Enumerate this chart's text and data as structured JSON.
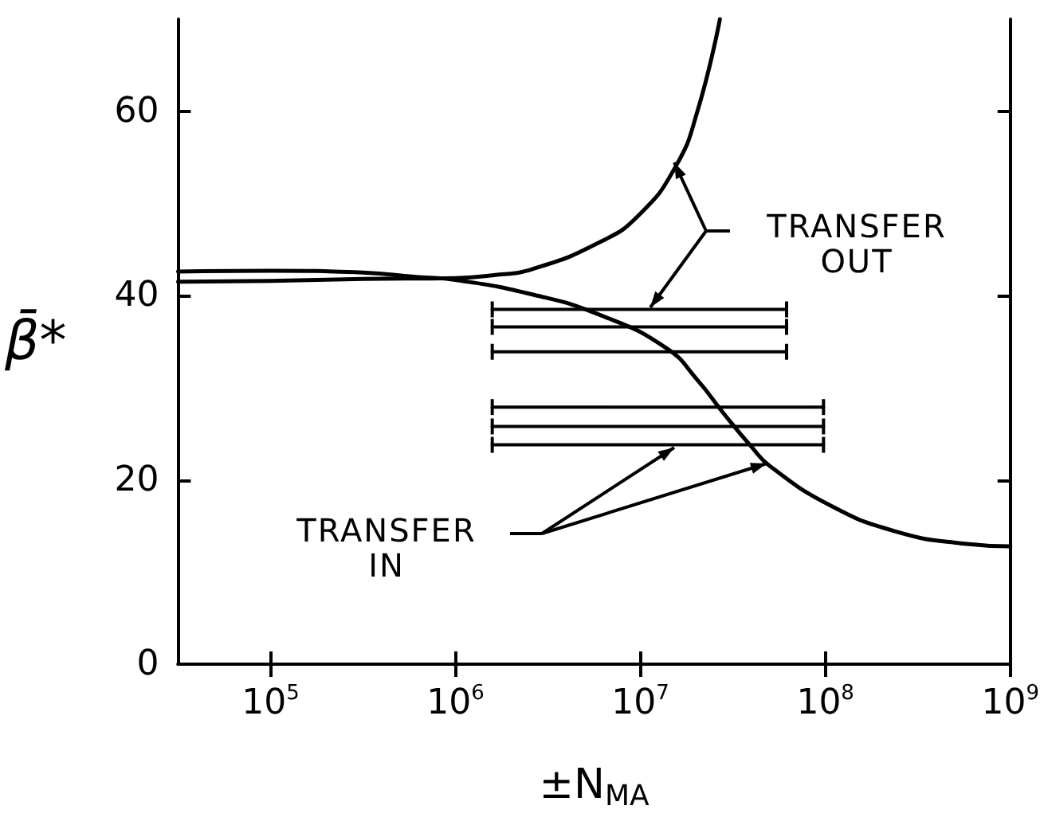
{
  "chart_data": {
    "type": "line",
    "xlabel": "±N$_{MA}$",
    "ylabel": "β̄*",
    "log": "x",
    "xlim": [
      31600,
      1000000000
    ],
    "xticks": [
      {
        "value": 100000,
        "label": "10$^{5}$"
      },
      {
        "value": 1000000,
        "label": "10$^{6}$"
      },
      {
        "value": 10000000,
        "label": "10$^{7}$"
      },
      {
        "value": 100000000,
        "label": "10$^{8}$"
      },
      {
        "value": 1000000000,
        "label": "10$^{9}$"
      }
    ],
    "ylim": [
      0,
      70
    ],
    "yticks": [
      0,
      20,
      40,
      60
    ],
    "grid": false,
    "marker": "none",
    "line_style": "solid",
    "annotations": [
      "TRANSFER OUT",
      "TRANSFER IN"
    ],
    "series": [
      {
        "color": "#000000",
        "x": [
          31600,
          100000,
          316000,
          1000000,
          1580000,
          2630000,
          6030000,
          9770000,
          15500000,
          20400000,
          26900000
        ],
        "values": [
          41.5,
          41.6,
          41.8,
          41.9,
          42.2,
          42.9,
          45.8,
          48.7,
          54.0,
          60.1,
          70
        ]
      },
      {
        "color": "#000000",
        "x": [
          31600,
          100000,
          316000,
          631000,
          1000000,
          2630000,
          6030000,
          13800000,
          20400000,
          28200000,
          39800000,
          50100000,
          107000000,
          240000000,
          550000000,
          1000000000
        ],
        "values": [
          42.6,
          42.7,
          42.5,
          42.0,
          41.7,
          40.1,
          37.9,
          34.3,
          30.8,
          27.2,
          23.6,
          21.5,
          17.2,
          14.4,
          13.1,
          12.8
        ]
      },
      {
        "color": "#000000",
        "x": [
          1580000,
          61700000
        ],
        "values": [
          38.5,
          38.5
        ]
      },
      {
        "color": "#000000",
        "x": [
          1580000,
          61700000
        ],
        "values": [
          36.6,
          36.6
        ]
      },
      {
        "color": "#000000",
        "x": [
          1580000,
          61700000
        ],
        "values": [
          33.9,
          33.9
        ]
      },
      {
        "color": "#000000",
        "x": [
          1580000,
          97700000
        ],
        "values": [
          27.9,
          27.9
        ]
      },
      {
        "color": "#000000",
        "x": [
          1580000,
          97700000
        ],
        "values": [
          25.8,
          25.8
        ]
      },
      {
        "color": "#000000",
        "x": [
          1580000,
          97700000
        ],
        "values": [
          23.8,
          23.8
        ]
      }
    ]
  }
}
